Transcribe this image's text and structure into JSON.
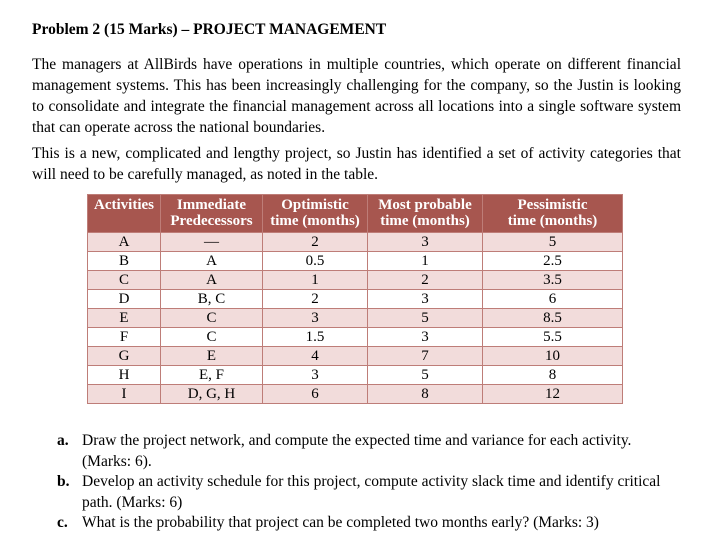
{
  "title": "Problem 2 (15 Marks) – PROJECT MANAGEMENT",
  "paragraphs": {
    "p1": "The managers at AllBirds have operations in multiple countries, which operate on different financial management systems. This has been increasingly challenging for the company, so the Justin is looking to consolidate and integrate the financial management across all locations into a single software system that can operate across the national boundaries.",
    "p2": "This is a new, complicated and lengthy project, so Justin has identified a set of activity categories that will need to be carefully managed, as noted in the table."
  },
  "table": {
    "headers": [
      {
        "line1": "Activities",
        "line2": ""
      },
      {
        "line1": "Immediate",
        "line2": "Predecessors"
      },
      {
        "line1": "Optimistic",
        "line2": "time (months)"
      },
      {
        "line1": "Most probable",
        "line2": "time (months)"
      },
      {
        "line1": "Pessimistic",
        "line2": "time (months)"
      }
    ],
    "rows": [
      [
        "A",
        "—",
        "2",
        "3",
        "5"
      ],
      [
        "B",
        "A",
        "0.5",
        "1",
        "2.5"
      ],
      [
        "C",
        "A",
        "1",
        "2",
        "3.5"
      ],
      [
        "D",
        "B, C",
        "2",
        "3",
        "6"
      ],
      [
        "E",
        "C",
        "3",
        "5",
        "8.5"
      ],
      [
        "F",
        "C",
        "1.5",
        "3",
        "5.5"
      ],
      [
        "G",
        "E",
        "4",
        "7",
        "10"
      ],
      [
        "H",
        "E, F",
        "3",
        "5",
        "8"
      ],
      [
        "I",
        "D, G, H",
        "6",
        "8",
        "12"
      ]
    ],
    "colors": {
      "header_bg": "#A7564F",
      "header_text": "#FFFFFF",
      "band_bg": "#F2DCDB",
      "white_bg": "#FFFFFF",
      "border": "#BE7D78"
    }
  },
  "questions": [
    {
      "marker": "a.",
      "text": "Draw the project network, and compute the expected time and variance for each activity. (Marks: 6)."
    },
    {
      "marker": "b.",
      "text": "Develop an activity schedule for this project, compute activity slack time and identify critical path. (Marks: 6)"
    },
    {
      "marker": "c.",
      "text": "What is the probability that project can be completed two months early? (Marks: 3)"
    }
  ]
}
